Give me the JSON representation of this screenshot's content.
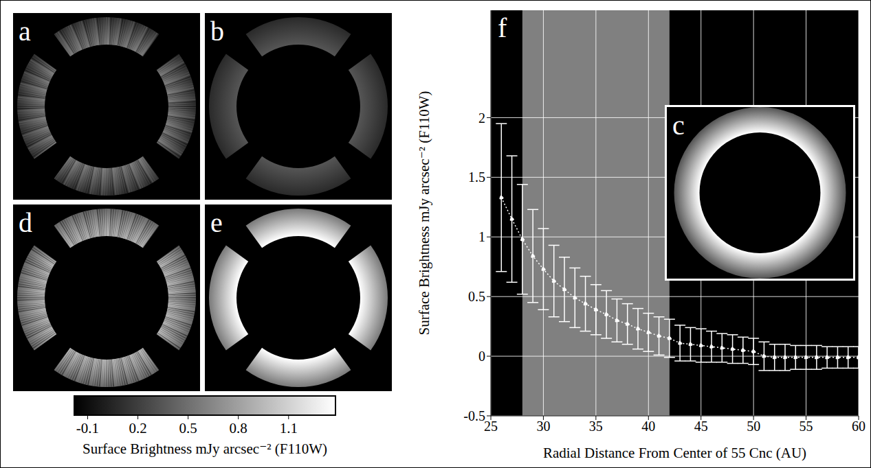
{
  "panels": [
    {
      "label": "a"
    },
    {
      "label": "b"
    },
    {
      "label": "d"
    },
    {
      "label": "e"
    }
  ],
  "colorbar": {
    "label": "Surface Brightness mJy arcsec⁻² (F110W)",
    "range": [
      -0.18,
      1.38
    ],
    "ticks": [
      -0.1,
      0.2,
      0.5,
      0.8,
      1.1
    ]
  },
  "chart_data": {
    "type": "line",
    "panel_label": "f",
    "inset_label": "c",
    "x_label": "Radial Distance From Center of 55 Cnc (AU)",
    "y_label": "Surface Brightness mJy arcsec⁻² (F110W)",
    "x": [
      26,
      27,
      28,
      29,
      30,
      31,
      32,
      33,
      34,
      35,
      36,
      37,
      38,
      39,
      40,
      41,
      42,
      43,
      44,
      45,
      46,
      47,
      48,
      49,
      50,
      51,
      52,
      53,
      54,
      55,
      56,
      57,
      58,
      59,
      60
    ],
    "values": [
      1.33,
      1.15,
      0.98,
      0.84,
      0.73,
      0.63,
      0.56,
      0.49,
      0.44,
      0.39,
      0.35,
      0.3,
      0.27,
      0.23,
      0.2,
      0.17,
      0.15,
      0.11,
      0.1,
      0.09,
      0.08,
      0.07,
      0.06,
      0.05,
      0.04,
      0.0,
      -0.01,
      -0.01,
      -0.01,
      -0.01,
      -0.01,
      -0.01,
      -0.01,
      -0.01,
      -0.01
    ],
    "errors": [
      0.62,
      0.53,
      0.46,
      0.39,
      0.34,
      0.3,
      0.27,
      0.25,
      0.23,
      0.21,
      0.2,
      0.18,
      0.17,
      0.17,
      0.16,
      0.16,
      0.16,
      0.15,
      0.14,
      0.14,
      0.13,
      0.12,
      0.12,
      0.11,
      0.11,
      0.12,
      0.11,
      0.11,
      0.1,
      0.1,
      0.1,
      0.09,
      0.09,
      0.09,
      0.09
    ],
    "shaded_region": [
      28,
      42
    ],
    "xlim": [
      25,
      60
    ],
    "xticks": [
      25,
      30,
      35,
      40,
      45,
      50,
      55,
      60
    ],
    "ylim": [
      -0.5,
      2.9
    ],
    "yticks": [
      -0.5,
      0,
      0.5,
      1,
      1.5,
      2
    ],
    "grid": true,
    "color": "#ffffff",
    "marker": "circle",
    "line_style": "dotted"
  }
}
